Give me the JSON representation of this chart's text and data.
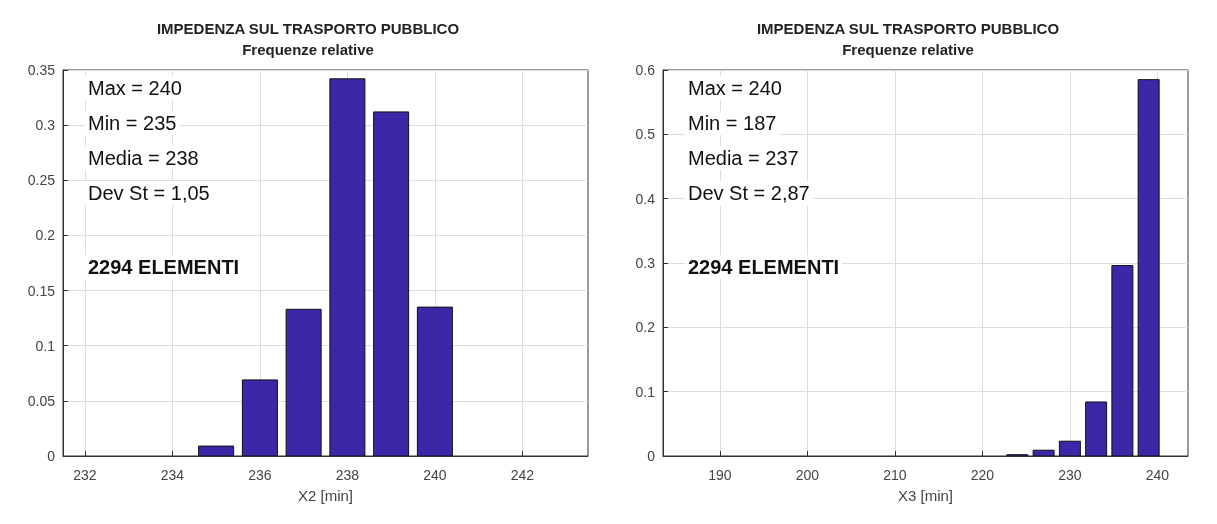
{
  "chart_data": [
    {
      "type": "bar",
      "title": "IMPEDENZA SUL TRASPORTO PUBBLICO",
      "subtitle": "Frequenze relative",
      "xlabel": "X2 [min]",
      "x": [
        235,
        236,
        237,
        238,
        239,
        240
      ],
      "values": [
        0.009,
        0.069,
        0.133,
        0.342,
        0.312,
        0.135
      ],
      "color": "#3b28a8",
      "xlim": [
        231.5,
        243.5
      ],
      "xticks": [
        232,
        234,
        236,
        238,
        240,
        242
      ],
      "ylim": [
        0,
        0.35
      ],
      "yticks": [
        0,
        0.05,
        0.1,
        0.15,
        0.2,
        0.25,
        0.3,
        0.35
      ],
      "grid": true,
      "annotations": [
        "Max = 240",
        "Min = 235",
        "Media = 238",
        "Dev St = 1,05",
        "2294 ELEMENTI"
      ]
    },
    {
      "type": "bar",
      "title": "IMPEDENZA SUL TRASPORTO PUBBLICO",
      "subtitle": "Frequenze relative",
      "xlabel": "X3 [min]",
      "x": [
        224,
        227,
        230,
        233,
        236,
        239
      ],
      "values": [
        0.002,
        0.009,
        0.023,
        0.084,
        0.296,
        0.585
      ],
      "color": "#3b28a8",
      "xlim": [
        183.5,
        243.5
      ],
      "xticks": [
        190,
        200,
        210,
        220,
        230,
        240
      ],
      "ylim": [
        0,
        0.6
      ],
      "yticks": [
        0,
        0.1,
        0.2,
        0.3,
        0.4,
        0.5,
        0.6
      ],
      "grid": true,
      "annotations": [
        "Max = 240",
        "Min = 187",
        "Media = 237",
        "Dev St = 2,87",
        "2294 ELEMENTI"
      ]
    }
  ]
}
